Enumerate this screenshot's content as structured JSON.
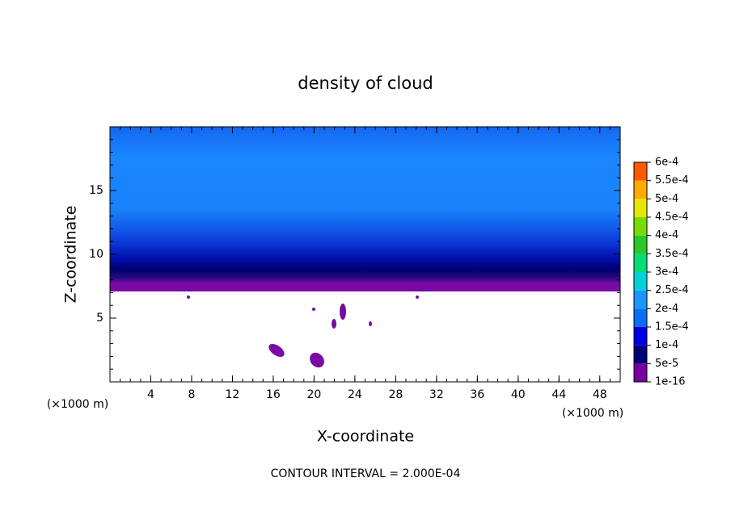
{
  "chart_data": {
    "type": "contour",
    "title": "density of cloud",
    "x_label": "X-coordinate",
    "y_label": "Z-coordinate",
    "x_unit": "(×1000 m)",
    "footer": "CONTOUR INTERVAL = 2.000E-04",
    "xlim": [
      0,
      50
    ],
    "xticks": [
      4,
      8,
      12,
      16,
      20,
      24,
      28,
      32,
      36,
      40,
      44,
      48
    ],
    "ylim": [
      0,
      20
    ],
    "yticks": [
      5,
      10,
      15
    ],
    "colorbar": {
      "levels": [
        {
          "value": 1e-16,
          "label": "1e-16"
        },
        {
          "value": 5e-05,
          "label": "5e-5"
        },
        {
          "value": 0.0001,
          "label": "1e-4"
        },
        {
          "value": 0.00015,
          "label": "1.5e-4"
        },
        {
          "value": 0.0002,
          "label": "2e-4"
        },
        {
          "value": 0.00025,
          "label": "2.5e-4"
        },
        {
          "value": 0.0003,
          "label": "3e-4"
        },
        {
          "value": 0.00035,
          "label": "3.5e-4"
        },
        {
          "value": 0.0004,
          "label": "4e-4"
        },
        {
          "value": 0.00045,
          "label": "4.5e-4"
        },
        {
          "value": 0.0005,
          "label": "5e-4"
        },
        {
          "value": 0.00055,
          "label": "5.5e-4"
        },
        {
          "value": 0.0006,
          "label": "6e-4"
        }
      ],
      "colors": [
        "#7800a0",
        "#00007a",
        "#0000e6",
        "#0a6ef5",
        "#1e96ff",
        "#00d2dc",
        "#00dc78",
        "#28c828",
        "#78dc00",
        "#e6e600",
        "#ffaa00",
        "#ff5a00",
        "#ff1e1e",
        "#ff8c8c"
      ]
    }
  }
}
